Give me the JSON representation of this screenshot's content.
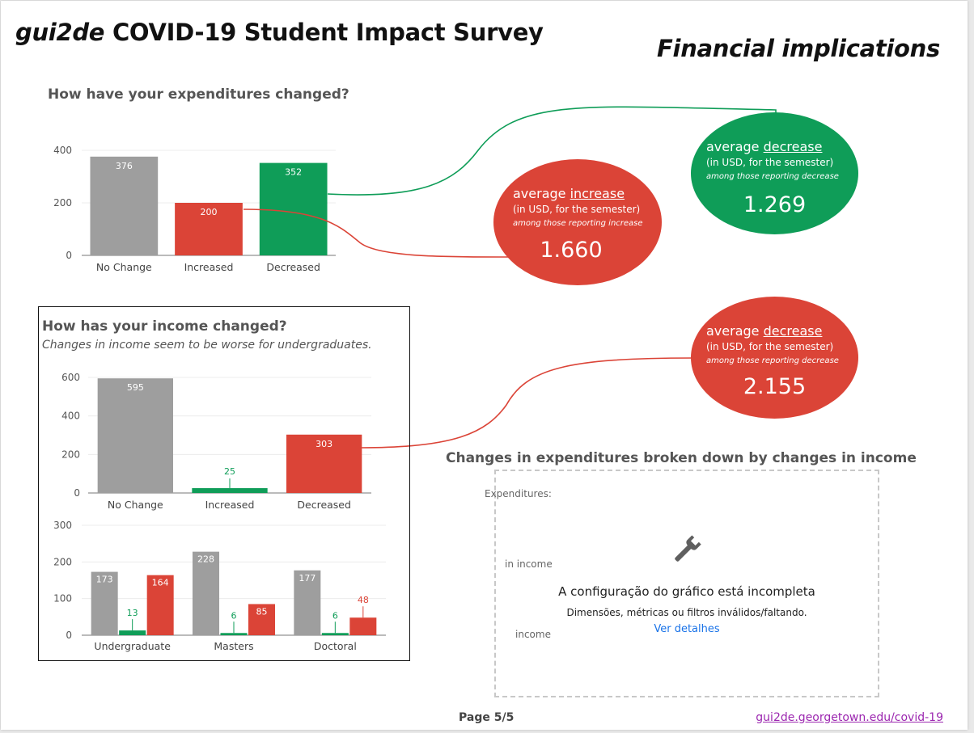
{
  "header": {
    "title_em": "gui2de",
    "title_rest": " COVID-19 Student Impact Survey",
    "section": "Financial implications"
  },
  "chart_data": [
    {
      "id": "expenditures",
      "type": "bar",
      "title": "How have your expenditures changed?",
      "categories": [
        "No Change",
        "Increased",
        "Decreased"
      ],
      "values": [
        376,
        200,
        352
      ],
      "colors": [
        "#9e9e9e",
        "#db4437",
        "#0f9d58"
      ],
      "ylim": [
        0,
        400
      ],
      "yticks": [
        0,
        200,
        400
      ],
      "grid": true
    },
    {
      "id": "income",
      "type": "bar",
      "title": "How has your income changed?",
      "subtitle": "Changes in income seem to be worse for undergraduates.",
      "categories": [
        "No Change",
        "Increased",
        "Decreased"
      ],
      "values": [
        595,
        25,
        303
      ],
      "colors": [
        "#9e9e9e",
        "#0f9d58",
        "#db4437"
      ],
      "ylim": [
        0,
        600
      ],
      "yticks": [
        0,
        200,
        400,
        600
      ],
      "grid": true
    },
    {
      "id": "income-by-level",
      "type": "bar",
      "categories": [
        "Undergraduate",
        "Masters",
        "Doctoral"
      ],
      "series": [
        {
          "values": [
            173,
            228,
            177
          ],
          "color": "#9e9e9e"
        },
        {
          "values": [
            13,
            6,
            6
          ],
          "color": "#0f9d58"
        },
        {
          "values": [
            164,
            85,
            48
          ],
          "color": "#db4437"
        }
      ],
      "ylim": [
        0,
        300
      ],
      "yticks": [
        0,
        100,
        200,
        300
      ],
      "grid": true
    }
  ],
  "callouts": {
    "exp_increase": {
      "prefix": "average ",
      "keyword": "increase",
      "unit": "(in USD, for the semester)",
      "note": "among those reporting increase",
      "value": "1.660"
    },
    "exp_decrease": {
      "prefix": "average ",
      "keyword": "decrease",
      "unit": "(in USD, for the semester)",
      "note": "among those reporting decrease",
      "value": "1.269"
    },
    "inc_decrease": {
      "prefix": "average ",
      "keyword": "decrease",
      "unit": "(in USD, for the semester)",
      "note": "among those reporting decrease",
      "value": "2.155"
    }
  },
  "breakdown": {
    "title": "Changes in expenditures broken down by changes in income",
    "label_expenditures": "Expenditures:",
    "label_in_income": "in income",
    "label_income": "income",
    "error_icon": "wrench-icon",
    "error_heading": "A configuração do gráfico está incompleta",
    "error_detail": "Dimensões, métricas ou filtros inválidos/faltando.",
    "error_link": "Ver detalhes"
  },
  "footer": {
    "page": "Page 5/5",
    "link": "gui2de.georgetown.edu/covid-19"
  }
}
